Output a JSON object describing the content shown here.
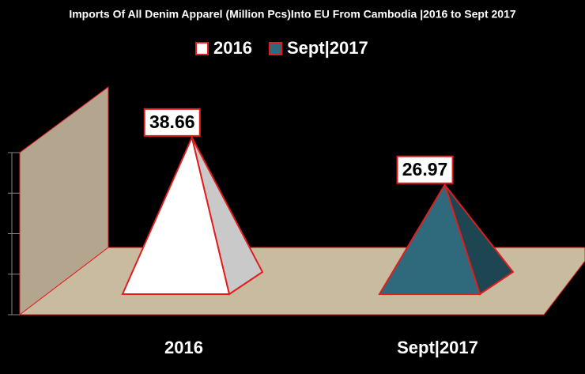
{
  "chart_data": {
    "type": "pyramid",
    "title": "Imports Of All Denim Apparel (Million Pcs)Into EU From Cambodia |2016 to Sept 2017",
    "categories": [
      "2016",
      "Sept|2017"
    ],
    "series": [
      {
        "name": "2016",
        "color": "#ffffff",
        "side_color": "#c9c9c9",
        "values": [
          38.66,
          null
        ]
      },
      {
        "name": "Sept|2017",
        "color": "#2f6a7c",
        "side_color": "#1e4552",
        "values": [
          null,
          26.97
        ]
      }
    ],
    "ylim": [
      0,
      40
    ],
    "yticks": [
      0,
      10,
      20,
      30,
      40
    ],
    "tick_labels": false,
    "outline_color": "#e01e1e",
    "wall_color": "#b3a58e",
    "floor_color": "#c9bba0"
  }
}
